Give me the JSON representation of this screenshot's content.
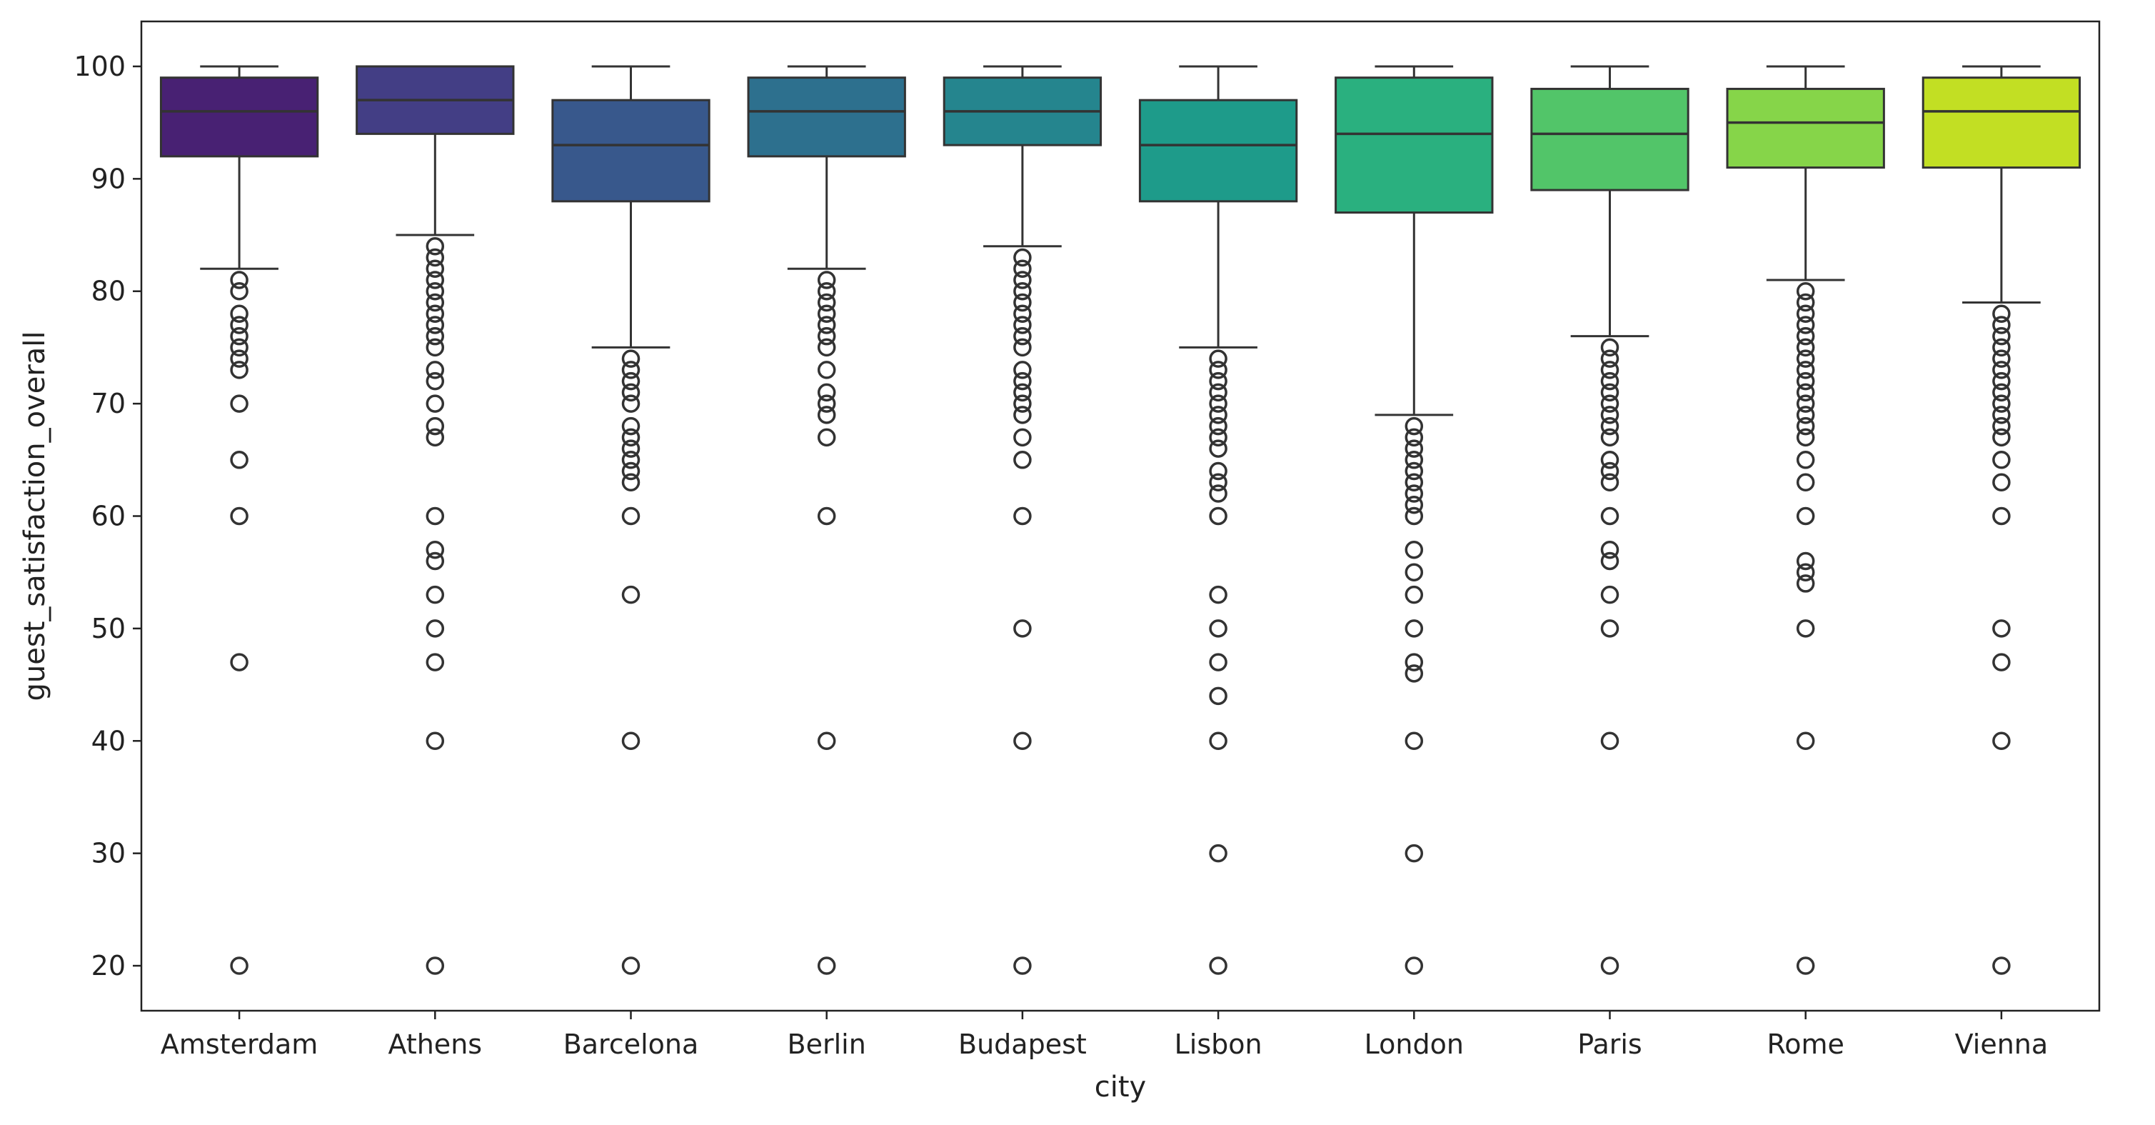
{
  "chart_data": {
    "type": "box",
    "title": "",
    "xlabel": "city",
    "ylabel": "guest_satisfaction_overall",
    "ylim": [
      16,
      104
    ],
    "yticks": [
      20,
      30,
      40,
      50,
      60,
      70,
      80,
      90,
      100
    ],
    "grid": false,
    "legend": "none",
    "palette": [
      "#482173",
      "#433e85",
      "#38588c",
      "#2d708e",
      "#25858e",
      "#1e9b8a",
      "#2ab07f",
      "#52c569",
      "#86d549",
      "#c2df23"
    ],
    "categories": [
      "Amsterdam",
      "Athens",
      "Barcelona",
      "Berlin",
      "Budapest",
      "Lisbon",
      "London",
      "Paris",
      "Rome",
      "Vienna"
    ],
    "boxes": [
      {
        "category": "Amsterdam",
        "whisker_low": 82,
        "q1": 92,
        "median": 96,
        "q3": 99,
        "whisker_high": 100,
        "outliers": [
          81,
          80,
          78,
          77,
          76,
          75,
          74,
          73,
          70,
          65,
          60,
          47,
          20
        ]
      },
      {
        "category": "Athens",
        "whisker_low": 85,
        "q1": 94,
        "median": 97,
        "q3": 100,
        "whisker_high": 100,
        "outliers": [
          84,
          83,
          82,
          81,
          80,
          79,
          78,
          77,
          76,
          75,
          73,
          72,
          70,
          68,
          67,
          60,
          57,
          56,
          53,
          50,
          47,
          40,
          20
        ]
      },
      {
        "category": "Barcelona",
        "whisker_low": 75,
        "q1": 88,
        "median": 93,
        "q3": 97,
        "whisker_high": 100,
        "outliers": [
          74,
          73,
          72,
          71,
          70,
          68,
          67,
          66,
          65,
          64,
          63,
          60,
          53,
          40,
          20
        ]
      },
      {
        "category": "Berlin",
        "whisker_low": 82,
        "q1": 92,
        "median": 96,
        "q3": 99,
        "whisker_high": 100,
        "outliers": [
          81,
          80,
          79,
          78,
          77,
          76,
          75,
          73,
          71,
          70,
          69,
          67,
          60,
          40,
          20
        ]
      },
      {
        "category": "Budapest",
        "whisker_low": 84,
        "q1": 93,
        "median": 96,
        "q3": 99,
        "whisker_high": 100,
        "outliers": [
          83,
          82,
          81,
          80,
          79,
          78,
          77,
          76,
          75,
          73,
          72,
          71,
          70,
          69,
          67,
          65,
          60,
          50,
          40,
          20
        ]
      },
      {
        "category": "Lisbon",
        "whisker_low": 75,
        "q1": 88,
        "median": 93,
        "q3": 97,
        "whisker_high": 100,
        "outliers": [
          74,
          73,
          72,
          71,
          70,
          69,
          68,
          67,
          66,
          64,
          63,
          62,
          60,
          53,
          50,
          47,
          44,
          40,
          30,
          20
        ]
      },
      {
        "category": "London",
        "whisker_low": 69,
        "q1": 87,
        "median": 94,
        "q3": 99,
        "whisker_high": 100,
        "outliers": [
          68,
          67,
          66,
          65,
          64,
          63,
          62,
          61,
          60,
          57,
          55,
          53,
          50,
          47,
          46,
          40,
          30,
          20
        ]
      },
      {
        "category": "Paris",
        "whisker_low": 76,
        "q1": 89,
        "median": 94,
        "q3": 98,
        "whisker_high": 100,
        "outliers": [
          75,
          74,
          73,
          72,
          71,
          70,
          69,
          68,
          67,
          65,
          64,
          63,
          60,
          57,
          56,
          53,
          50,
          40,
          20
        ]
      },
      {
        "category": "Rome",
        "whisker_low": 81,
        "q1": 91,
        "median": 95,
        "q3": 98,
        "whisker_high": 100,
        "outliers": [
          80,
          79,
          78,
          77,
          76,
          75,
          74,
          73,
          72,
          71,
          70,
          69,
          68,
          67,
          65,
          63,
          60,
          56,
          55,
          54,
          50,
          40,
          20
        ]
      },
      {
        "category": "Vienna",
        "whisker_low": 79,
        "q1": 91,
        "median": 96,
        "q3": 99,
        "whisker_high": 100,
        "outliers": [
          78,
          77,
          76,
          75,
          74,
          73,
          72,
          71,
          70,
          69,
          68,
          67,
          65,
          63,
          60,
          50,
          47,
          40,
          20
        ]
      }
    ]
  }
}
